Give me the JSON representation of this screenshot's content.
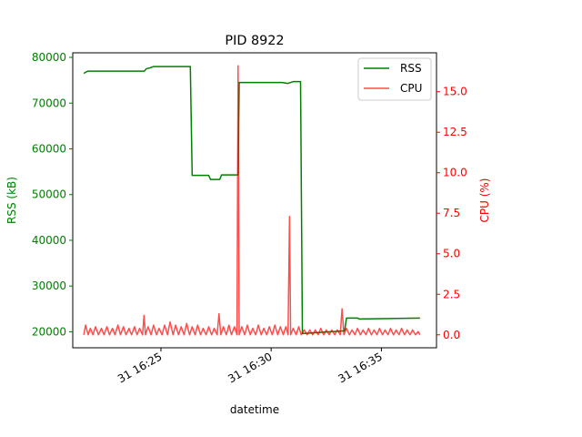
{
  "chart_data": {
    "type": "line",
    "title": "PID 8922",
    "xlabel": "datetime",
    "ylabel_left": "RSS (kB)",
    "ylabel_right": "CPU (%)",
    "xlim": [
      "16:21:00",
      "16:37:30"
    ],
    "ylim_left": [
      16500,
      81000
    ],
    "ylim_right": [
      -0.8,
      17.4
    ],
    "x_ticks": [
      {
        "t": "16:25:00",
        "label": "31 16:25"
      },
      {
        "t": "16:30:00",
        "label": "31 16:30"
      },
      {
        "t": "16:35:00",
        "label": "31 16:35"
      }
    ],
    "y_ticks_left": [
      20000,
      30000,
      40000,
      50000,
      60000,
      70000,
      80000
    ],
    "y_ticks_right": [
      0.0,
      2.5,
      5.0,
      7.5,
      10.0,
      12.5,
      15.0
    ],
    "legend": {
      "placement": "top-right",
      "entries": [
        "RSS",
        "CPU"
      ]
    },
    "colors": {
      "rss": "#008000",
      "cpu": "#ff0000",
      "left_axis": "#008000",
      "right_axis": "#ff0000"
    },
    "grid": false,
    "series": [
      {
        "name": "RSS",
        "axis": "left",
        "points": [
          [
            "16:21:30",
            76500
          ],
          [
            "16:21:36",
            76800
          ],
          [
            "16:21:42",
            77000
          ],
          [
            "16:24:15",
            77000
          ],
          [
            "16:24:20",
            77500
          ],
          [
            "16:24:30",
            77700
          ],
          [
            "16:24:40",
            78000
          ],
          [
            "16:26:00",
            78000
          ],
          [
            "16:26:20",
            78000
          ],
          [
            "16:26:25",
            54200
          ],
          [
            "16:27:10",
            54200
          ],
          [
            "16:27:15",
            53300
          ],
          [
            "16:27:40",
            53300
          ],
          [
            "16:27:45",
            54300
          ],
          [
            "16:28:30",
            54300
          ],
          [
            "16:28:33",
            74500
          ],
          [
            "16:30:30",
            74500
          ],
          [
            "16:30:45",
            74300
          ],
          [
            "16:31:00",
            74700
          ],
          [
            "16:31:20",
            74700
          ],
          [
            "16:31:25",
            19600
          ],
          [
            "16:33:20",
            20200
          ],
          [
            "16:33:25",
            23000
          ],
          [
            "16:33:55",
            23000
          ],
          [
            "16:34:00",
            22800
          ],
          [
            "16:36:45",
            23000
          ]
        ]
      },
      {
        "name": "CPU",
        "axis": "right",
        "points": [
          [
            "16:21:30",
            0.0
          ],
          [
            "16:21:35",
            0.6
          ],
          [
            "16:21:42",
            0.0
          ],
          [
            "16:21:48",
            0.4
          ],
          [
            "16:21:55",
            0.0
          ],
          [
            "16:22:02",
            0.5
          ],
          [
            "16:22:10",
            0.0
          ],
          [
            "16:22:18",
            0.4
          ],
          [
            "16:22:25",
            0.0
          ],
          [
            "16:22:33",
            0.5
          ],
          [
            "16:22:40",
            0.0
          ],
          [
            "16:22:48",
            0.4
          ],
          [
            "16:22:55",
            0.0
          ],
          [
            "16:23:03",
            0.6
          ],
          [
            "16:23:10",
            0.0
          ],
          [
            "16:23:18",
            0.5
          ],
          [
            "16:23:25",
            0.0
          ],
          [
            "16:23:33",
            0.4
          ],
          [
            "16:23:40",
            0.0
          ],
          [
            "16:23:48",
            0.5
          ],
          [
            "16:23:55",
            0.0
          ],
          [
            "16:24:02",
            0.4
          ],
          [
            "16:24:10",
            0.0
          ],
          [
            "16:24:14",
            1.2
          ],
          [
            "16:24:18",
            0.0
          ],
          [
            "16:24:25",
            0.5
          ],
          [
            "16:24:33",
            0.0
          ],
          [
            "16:24:40",
            0.6
          ],
          [
            "16:24:48",
            0.0
          ],
          [
            "16:24:55",
            0.4
          ],
          [
            "16:25:03",
            0.0
          ],
          [
            "16:25:10",
            0.6
          ],
          [
            "16:25:18",
            0.0
          ],
          [
            "16:25:25",
            0.8
          ],
          [
            "16:25:33",
            0.0
          ],
          [
            "16:25:40",
            0.6
          ],
          [
            "16:25:48",
            0.0
          ],
          [
            "16:25:55",
            0.5
          ],
          [
            "16:26:03",
            0.0
          ],
          [
            "16:26:10",
            0.7
          ],
          [
            "16:26:18",
            0.0
          ],
          [
            "16:26:25",
            0.5
          ],
          [
            "16:26:33",
            0.0
          ],
          [
            "16:26:40",
            0.6
          ],
          [
            "16:26:48",
            0.0
          ],
          [
            "16:26:55",
            0.4
          ],
          [
            "16:27:03",
            0.0
          ],
          [
            "16:27:10",
            0.5
          ],
          [
            "16:27:18",
            0.0
          ],
          [
            "16:27:25",
            0.4
          ],
          [
            "16:27:33",
            0.0
          ],
          [
            "16:27:38",
            1.3
          ],
          [
            "16:27:43",
            0.0
          ],
          [
            "16:27:50",
            0.5
          ],
          [
            "16:27:58",
            0.0
          ],
          [
            "16:28:05",
            0.6
          ],
          [
            "16:28:12",
            0.0
          ],
          [
            "16:28:20",
            0.5
          ],
          [
            "16:28:27",
            0.0
          ],
          [
            "16:28:30",
            16.6
          ],
          [
            "16:28:33",
            0.0
          ],
          [
            "16:28:40",
            0.5
          ],
          [
            "16:28:48",
            0.0
          ],
          [
            "16:28:55",
            0.6
          ],
          [
            "16:29:03",
            0.0
          ],
          [
            "16:29:10",
            0.4
          ],
          [
            "16:29:18",
            0.0
          ],
          [
            "16:29:25",
            0.6
          ],
          [
            "16:29:33",
            0.0
          ],
          [
            "16:29:40",
            0.4
          ],
          [
            "16:29:48",
            0.0
          ],
          [
            "16:29:55",
            0.5
          ],
          [
            "16:30:03",
            0.0
          ],
          [
            "16:30:10",
            0.6
          ],
          [
            "16:30:18",
            0.0
          ],
          [
            "16:30:25",
            0.5
          ],
          [
            "16:30:33",
            0.0
          ],
          [
            "16:30:40",
            0.5
          ],
          [
            "16:30:46",
            0.0
          ],
          [
            "16:30:50",
            7.3
          ],
          [
            "16:30:53",
            0.0
          ],
          [
            "16:31:00",
            0.4
          ],
          [
            "16:31:08",
            0.0
          ],
          [
            "16:31:15",
            0.5
          ],
          [
            "16:31:22",
            0.0
          ],
          [
            "16:31:30",
            0.3
          ],
          [
            "16:31:38",
            0.0
          ],
          [
            "16:31:45",
            0.3
          ],
          [
            "16:31:53",
            0.0
          ],
          [
            "16:32:00",
            0.3
          ],
          [
            "16:32:08",
            0.0
          ],
          [
            "16:32:15",
            0.4
          ],
          [
            "16:32:23",
            0.0
          ],
          [
            "16:32:30",
            0.3
          ],
          [
            "16:32:38",
            0.0
          ],
          [
            "16:32:45",
            0.3
          ],
          [
            "16:32:53",
            0.0
          ],
          [
            "16:33:00",
            0.3
          ],
          [
            "16:33:08",
            0.0
          ],
          [
            "16:33:13",
            1.6
          ],
          [
            "16:33:18",
            0.0
          ],
          [
            "16:33:25",
            0.4
          ],
          [
            "16:33:33",
            0.0
          ],
          [
            "16:33:40",
            0.3
          ],
          [
            "16:33:48",
            0.0
          ],
          [
            "16:33:55",
            0.4
          ],
          [
            "16:34:03",
            0.0
          ],
          [
            "16:34:10",
            0.3
          ],
          [
            "16:34:18",
            0.0
          ],
          [
            "16:34:25",
            0.4
          ],
          [
            "16:34:33",
            0.0
          ],
          [
            "16:34:40",
            0.3
          ],
          [
            "16:34:48",
            0.0
          ],
          [
            "16:34:55",
            0.4
          ],
          [
            "16:35:03",
            0.0
          ],
          [
            "16:35:10",
            0.3
          ],
          [
            "16:35:18",
            0.0
          ],
          [
            "16:35:25",
            0.4
          ],
          [
            "16:35:33",
            0.0
          ],
          [
            "16:35:40",
            0.3
          ],
          [
            "16:35:48",
            0.0
          ],
          [
            "16:35:55",
            0.4
          ],
          [
            "16:36:03",
            0.0
          ],
          [
            "16:36:10",
            0.3
          ],
          [
            "16:36:18",
            0.0
          ],
          [
            "16:36:25",
            0.3
          ],
          [
            "16:36:33",
            0.0
          ],
          [
            "16:36:40",
            0.2
          ],
          [
            "16:36:45",
            0.0
          ]
        ]
      }
    ]
  }
}
